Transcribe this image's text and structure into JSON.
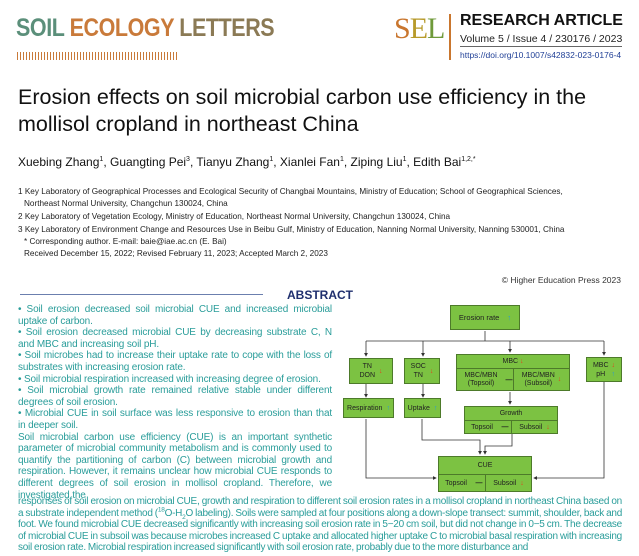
{
  "header": {
    "journal_words": [
      "SOIL",
      "ECOLOGY",
      "LETTERS"
    ],
    "logo_text": "SEL",
    "article_type": "RESEARCH ARTICLE",
    "volume_line": "Volume 5 / Issue 4 / 230176 / 2023",
    "doi": "https://doi.org/10.1007/s42832-023-0176-4"
  },
  "title": "Erosion effects on soil microbial carbon use efficiency in the mollisol cropland in northeast China",
  "authors": [
    {
      "name": "Xuebing Zhang",
      "sup": "1"
    },
    {
      "name": "Guangting Pei",
      "sup": "3"
    },
    {
      "name": "Tianyu Zhang",
      "sup": "1"
    },
    {
      "name": "Xianlei Fan",
      "sup": "1"
    },
    {
      "name": "Ziping Liu",
      "sup": "1"
    },
    {
      "name": "Edith Bai",
      "sup": "1,2,*"
    }
  ],
  "affiliations": [
    "1 Key Laboratory of Geographical Processes and Ecological Security of Changbai Mountains, Ministry of Education; School of Geographical Sciences,",
    "   Northeast Normal University, Changchun 130024, China",
    "2 Key Laboratory of Vegetation Ecology, Ministry of Education, Northeast Normal University, Changchun 130024, China",
    "3 Key Laboratory of Environment Change and Resources Use in Beibu Gulf, Ministry of Education, Nanning Normal University, Nanning 530001, China",
    "   * Corresponding author. E-mail: baie@iae.ac.cn (E. Bai)",
    "   Received December 15, 2022; Revised February 11, 2023; Accepted March 2, 2023"
  ],
  "copyright": "© Higher Education Press 2023",
  "abstract": {
    "heading": "ABSTRACT",
    "bullets": [
      "• Soil erosion decreased soil microbial CUE and increased microbial uptake of carbon.",
      "• Soil erosion decreased microbial CUE by decreasing substrate C, N and MBC and increasing soil pH.",
      "• Soil microbes had to increase their uptake rate to cope with the loss of substrates with increasing erosion rate.",
      "• Soil microbial respiration increased with increasing degree of erosion.",
      "• Soil microbial growth rate remained relative stable under different degrees of soil erosion.",
      "• Microbial CUE in soil surface was less responsive to erosion than that in deeper soil."
    ],
    "body_left": "Soil microbial carbon use efficiency (CUE) is an important synthetic parameter of microbial community metabolism and is commonly used to quantify the partitioning of carbon (C) between microbial growth and respiration. However, it remains unclear how microbial CUE responds to different degrees of soil erosion in mollisol cropland. Therefore, we investigated the",
    "body_full_1": "responses of soil erosion on microbial CUE, growth and respiration to different soil erosion rates in a mollisol cropland in northeast China based on a substrate independent method (",
    "iso_sup": "18",
    "iso_a": "O-H",
    "iso_sub": "2",
    "body_full_2": "O labeling). Soils were sampled at four positions along a down-slope transect: summit, shoulder, back and foot. We found microbial CUE decreased significantly with increasing soil erosion rate in 5−20 cm soil, but did not change in 0−5 cm. The decrease of microbial CUE in subsoil was because microbes increased C uptake and allocated higher uptake C to microbial basal respiration with increasing soil erosion rate. Microbial respiration increased significantly with soil erosion rate, probably due to the more disturbance and"
  },
  "diagram": {
    "erosion": "Erosion rate",
    "tn": "TN",
    "don": "DON",
    "soc": "SOC",
    "soc_tn": "TN",
    "mbc": "MBC",
    "mbcmbn_top": "MBC/MBN",
    "top_paren": "(Topsoil)",
    "mbcmbn_sub": "MBC/MBN",
    "sub_paren": "(Subsoil)",
    "mbc2": "MBC",
    "ph": "pH",
    "respiration": "Respiration",
    "uptake": "Uptake",
    "growth": "Growth",
    "topsoil": "Topsoil",
    "subsoil": "Subsoil",
    "cue": "CUE",
    "no_change": "—",
    "up_arrow": "↑",
    "down_arrow": "↓"
  }
}
